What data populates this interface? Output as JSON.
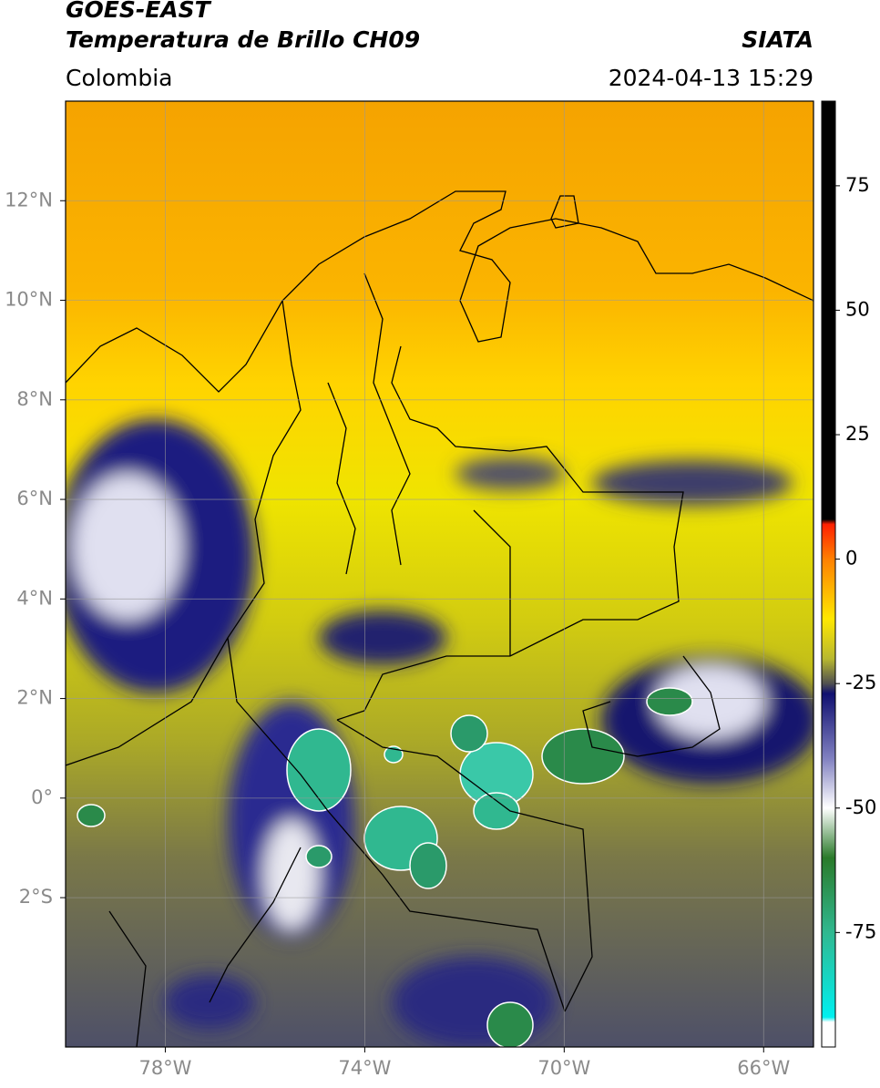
{
  "chart_data": {
    "type": "map",
    "title": "GOES-EAST",
    "subtitle": "Temperatura de Brillo CH09",
    "source": "SIATA",
    "region": "Colombia",
    "timestamp": "2024-04-13 15:29",
    "xlim": [
      -80,
      -65
    ],
    "ylim": [
      -5,
      14
    ],
    "xticks": [
      {
        "value": -78,
        "label": "78°W"
      },
      {
        "value": -74,
        "label": "74°W"
      },
      {
        "value": -70,
        "label": "70°W"
      },
      {
        "value": -66,
        "label": "66°W"
      }
    ],
    "yticks": [
      {
        "value": 12,
        "label": "12°N"
      },
      {
        "value": 10,
        "label": "10°N"
      },
      {
        "value": 8,
        "label": "8°N"
      },
      {
        "value": 6,
        "label": "6°N"
      },
      {
        "value": 4,
        "label": "4°N"
      },
      {
        "value": 2,
        "label": "2°N"
      },
      {
        "value": 0,
        "label": "0°"
      },
      {
        "value": -2,
        "label": "2°S"
      }
    ],
    "grid": true,
    "colorbar": {
      "lim": [
        -98,
        92
      ],
      "ticks": [
        75,
        50,
        25,
        0,
        -25,
        -50,
        -75
      ],
      "stops": [
        {
          "value": 92,
          "color": "#000000"
        },
        {
          "value": 8,
          "color": "#000000"
        },
        {
          "value": 7,
          "color": "#ff2000"
        },
        {
          "value": 0,
          "color": "#ff8000"
        },
        {
          "value": -12,
          "color": "#ffe800"
        },
        {
          "value": -20,
          "color": "#b8b830"
        },
        {
          "value": -25,
          "color": "#505050"
        },
        {
          "value": -27,
          "color": "#101070"
        },
        {
          "value": -40,
          "color": "#8080c0"
        },
        {
          "value": -50,
          "color": "#ffffff"
        },
        {
          "value": -60,
          "color": "#2a7a2a"
        },
        {
          "value": -75,
          "color": "#30b890"
        },
        {
          "value": -92,
          "color": "#00f0f0"
        },
        {
          "value": -93,
          "color": "#ffffff"
        },
        {
          "value": -98,
          "color": "#ffffff"
        }
      ]
    }
  }
}
